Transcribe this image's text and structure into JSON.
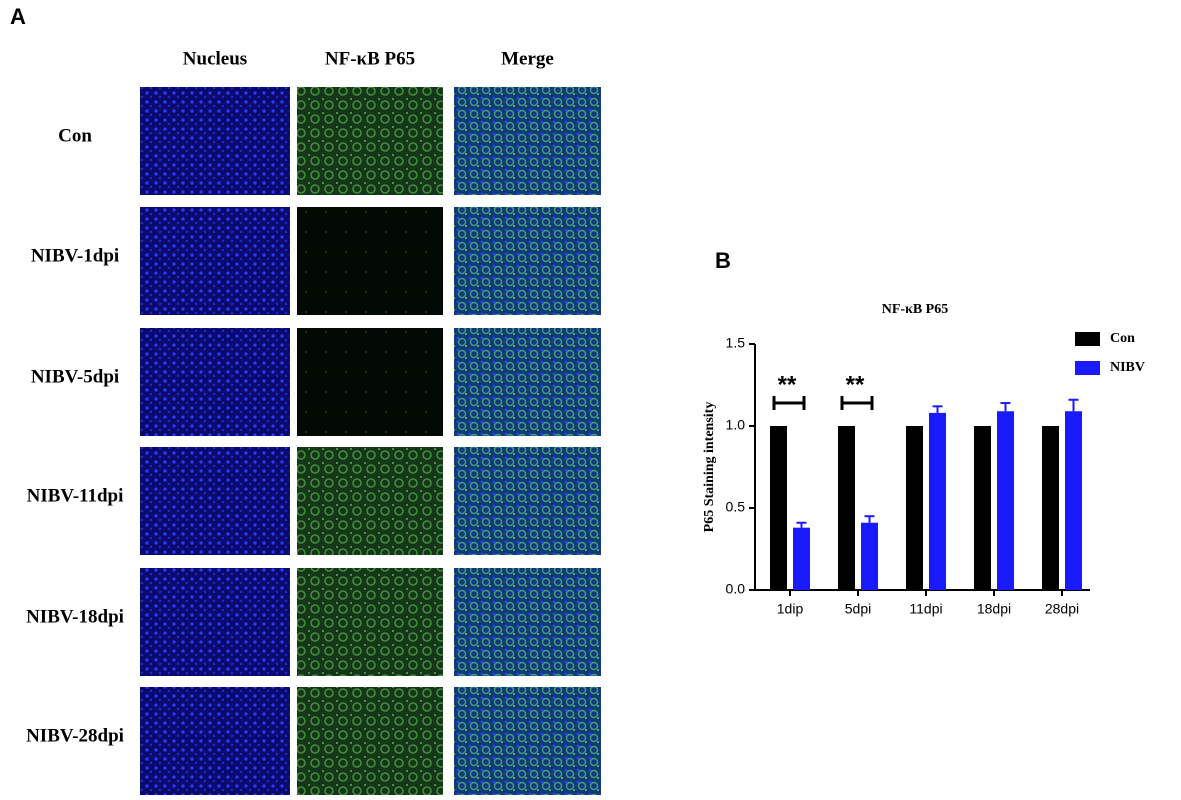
{
  "panel_a": {
    "label": "A",
    "columns": [
      "Nucleus",
      "NF-κB P65",
      "Merge"
    ],
    "rows": [
      "Con",
      "NIBV-1dpi",
      "NIBV-5dpi",
      "NIBV-11dpi",
      "NIBV-18dpi",
      "NIBV-28dpi"
    ]
  },
  "panel_b": {
    "label": "B"
  },
  "chart_data": {
    "type": "bar",
    "title": "NF-κB P65",
    "y_label": "P65 Staining intensity",
    "categories": [
      "1dip",
      "5dpi",
      "11dpi",
      "18dpi",
      "28dpi"
    ],
    "series": [
      {
        "name": "Con",
        "color": "#000000",
        "values": [
          1,
          1,
          1,
          1,
          1
        ]
      },
      {
        "name": "NIBV",
        "color": "#1a1aff",
        "values": [
          0.38,
          0.41,
          1.08,
          1.09,
          1.09
        ],
        "errors": [
          0.03,
          0.04,
          0.04,
          0.05,
          0.07
        ]
      }
    ],
    "annotations": [
      "**",
      "**",
      null,
      null,
      null
    ],
    "ylim": [
      0,
      1.5
    ],
    "yticks": [
      {
        "value": 0,
        "label": "0.0"
      },
      {
        "value": 0.5,
        "label": "0.5"
      },
      {
        "value": 1,
        "label": "1.0"
      },
      {
        "value": 1.5,
        "label": "1.5"
      }
    ]
  }
}
